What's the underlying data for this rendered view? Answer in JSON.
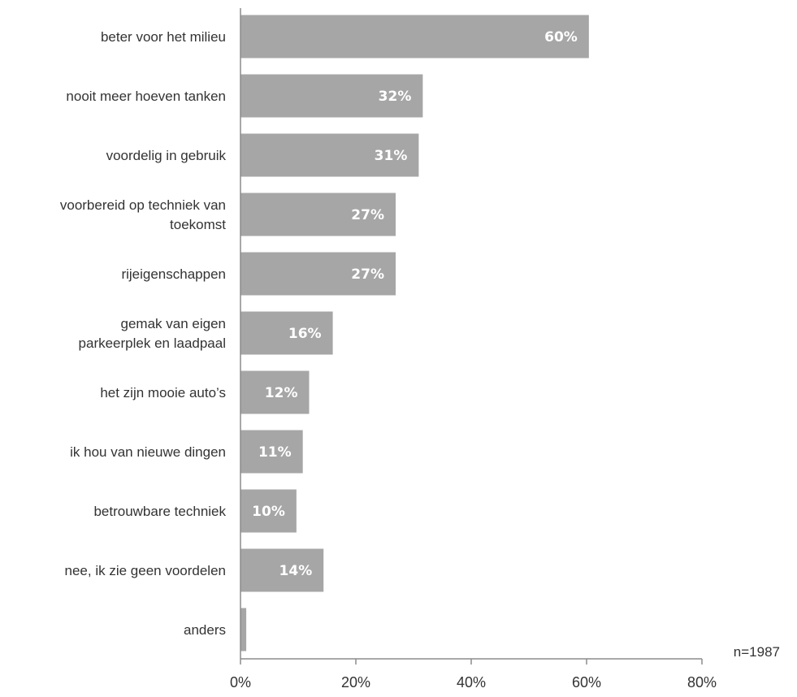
{
  "chart_data": {
    "type": "bar",
    "orientation": "horizontal",
    "categories": [
      [
        "beter voor het milieu"
      ],
      [
        "nooit meer hoeven tanken"
      ],
      [
        "voordelig in gebruik"
      ],
      [
        "voorbereid op techniek van",
        "toekomst"
      ],
      [
        "rijeigenschappen"
      ],
      [
        "gemak van eigen",
        "parkeerplek en laadpaal"
      ],
      [
        "het zijn mooie auto’s"
      ],
      [
        "ik hou van nieuwe dingen"
      ],
      [
        "betrouwbare techniek"
      ],
      [
        "nee, ik zie geen voordelen"
      ],
      [
        "anders"
      ]
    ],
    "values": [
      60.4,
      31.6,
      30.9,
      26.9,
      26.9,
      16.0,
      11.9,
      10.8,
      9.7,
      14.4,
      1.0
    ],
    "data_labels": [
      "60%",
      "32%",
      "31%",
      "27%",
      "27%",
      "16%",
      "12%",
      "11%",
      "10%",
      "14%",
      ""
    ],
    "xlim": [
      0,
      80
    ],
    "xticks": [
      0,
      20,
      40,
      60,
      80
    ],
    "xtick_labels": [
      "0%",
      "20%",
      "40%",
      "60%",
      "80%"
    ],
    "grid": false,
    "bar_color": "#a6a6a6",
    "label_color": "#ffffff",
    "note": "n=1987"
  }
}
